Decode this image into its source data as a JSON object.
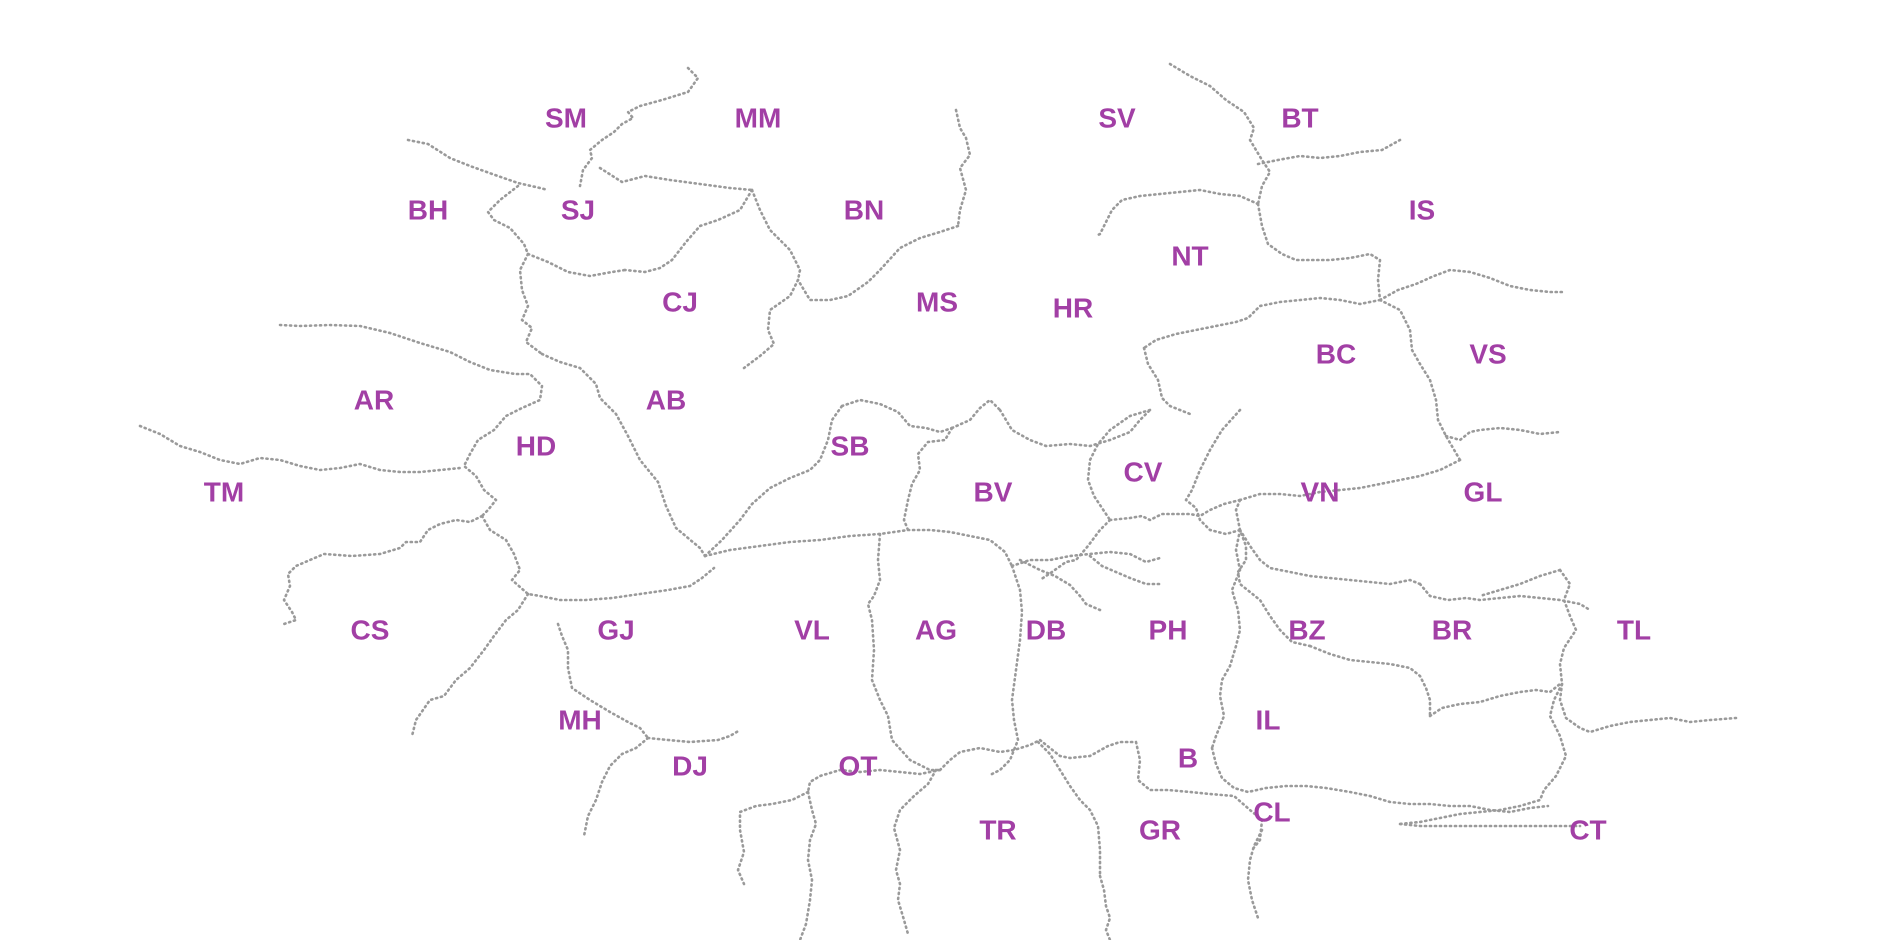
{
  "map": {
    "label_color": "#a23fa5",
    "border_color": "#9a9a9a",
    "counties": [
      {
        "code": "SM"
      },
      {
        "code": "MM"
      },
      {
        "code": "SV"
      },
      {
        "code": "BT"
      },
      {
        "code": "BH"
      },
      {
        "code": "SJ"
      },
      {
        "code": "BN"
      },
      {
        "code": "IS"
      },
      {
        "code": "NT"
      },
      {
        "code": "CJ"
      },
      {
        "code": "MS"
      },
      {
        "code": "HR"
      },
      {
        "code": "BC"
      },
      {
        "code": "VS"
      },
      {
        "code": "AR"
      },
      {
        "code": "AB"
      },
      {
        "code": "HD"
      },
      {
        "code": "SB"
      },
      {
        "code": "CV"
      },
      {
        "code": "TM"
      },
      {
        "code": "BV"
      },
      {
        "code": "VN"
      },
      {
        "code": "GL"
      },
      {
        "code": "CS"
      },
      {
        "code": "GJ"
      },
      {
        "code": "VL"
      },
      {
        "code": "AG"
      },
      {
        "code": "DB"
      },
      {
        "code": "PH"
      },
      {
        "code": "BZ"
      },
      {
        "code": "BR"
      },
      {
        "code": "TL"
      },
      {
        "code": "MH"
      },
      {
        "code": "IL"
      },
      {
        "code": "DJ"
      },
      {
        "code": "OT"
      },
      {
        "code": "B"
      },
      {
        "code": "CL"
      },
      {
        "code": "TR"
      },
      {
        "code": "GR"
      },
      {
        "code": "CT"
      }
    ]
  }
}
